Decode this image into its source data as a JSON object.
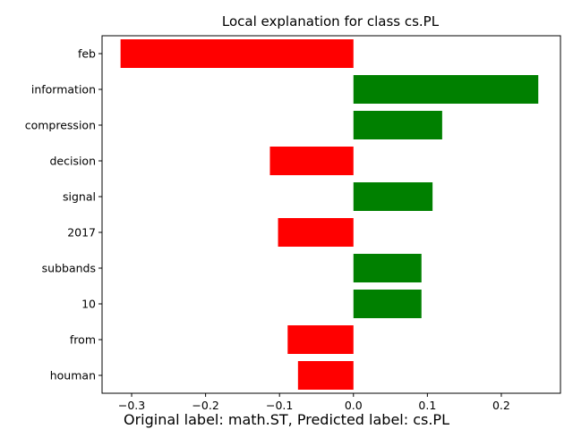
{
  "chart_data": {
    "type": "bar",
    "orientation": "horizontal",
    "title": "Local explanation for class cs.PL",
    "caption": "Original label: math.ST, Predicted label: cs.PL",
    "categories": [
      "feb",
      "information",
      "compression",
      "decision",
      "signal",
      "2017",
      "subbands",
      "10",
      "from",
      "houman"
    ],
    "values": [
      -0.315,
      0.25,
      0.12,
      -0.113,
      0.107,
      -0.102,
      0.092,
      0.092,
      -0.089,
      -0.075
    ],
    "xlim": [
      -0.34,
      0.28
    ],
    "xticks": [
      -0.3,
      -0.2,
      -0.1,
      0.0,
      0.1,
      0.2
    ],
    "xtick_labels": [
      "−0.3",
      "−0.2",
      "−0.1",
      "0.0",
      "0.1",
      "0.2"
    ],
    "xlabel": "",
    "ylabel": "",
    "grid": false,
    "colors": {
      "positive": "#008000",
      "negative": "#ff0000",
      "axis": "#000000"
    }
  }
}
